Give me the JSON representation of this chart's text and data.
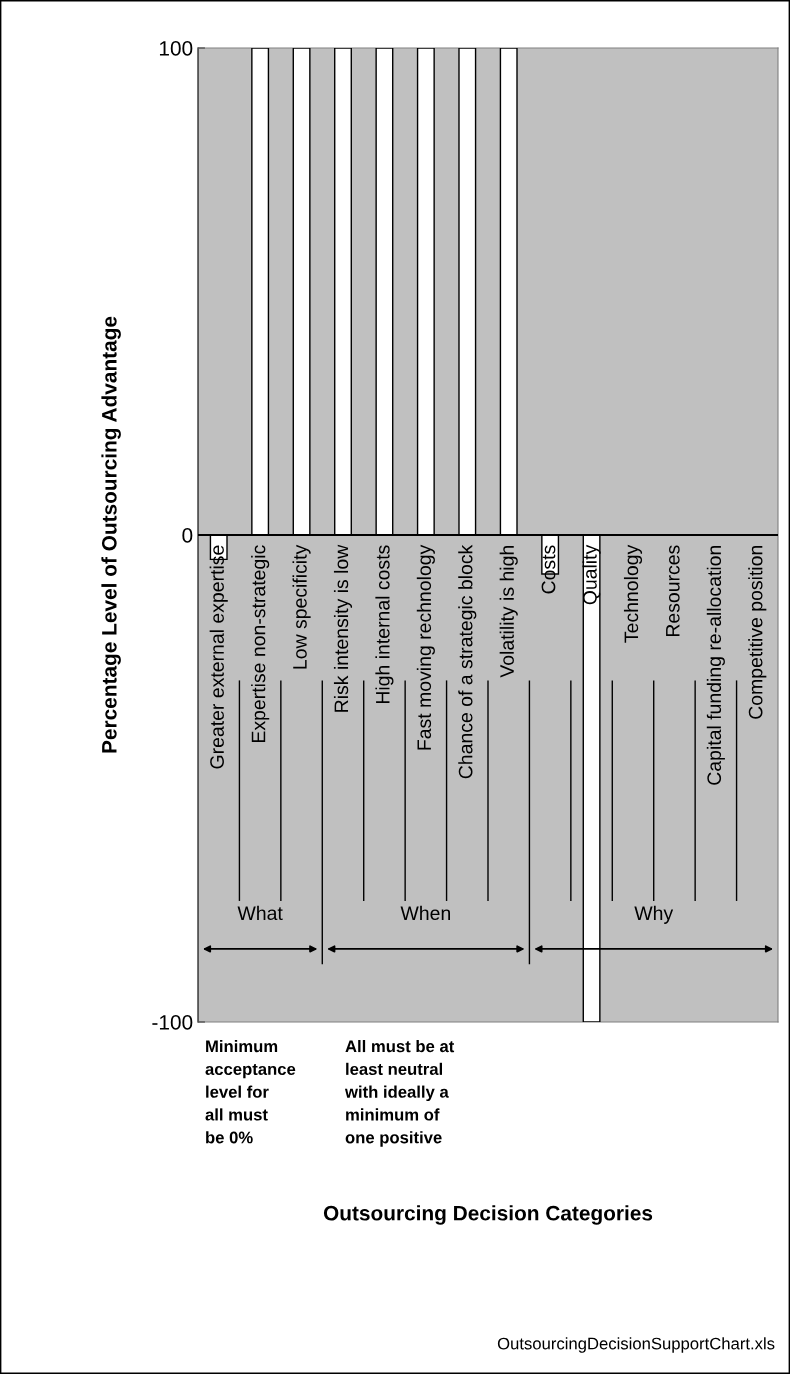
{
  "chart_data": {
    "type": "bar",
    "ylabel": "Percentage Level of Outsourcing Advantage",
    "categories": [
      "Greater external expertise",
      "Expertise non-strategic",
      "Low specificity",
      "Risk intensity is low",
      "High internal costs",
      "Fast moving rechnology",
      "Chance of a strategic block",
      "Volatility is high",
      "Costs",
      "Quality",
      "Technology",
      "Resources",
      "Capital funding re-allocation",
      "Competitive position"
    ],
    "values": [
      -5,
      100,
      100,
      100,
      100,
      100,
      100,
      100,
      -8,
      -100,
      0,
      0,
      0,
      0
    ],
    "color": "#ffffff",
    "ylim": [
      -100,
      100
    ],
    "yticks": [
      -100,
      0,
      100
    ],
    "legend": false,
    "annotations": [
      "What",
      "When",
      "Why",
      "Minimum\nacceptance\nlevel for\nall must\nbe 0%",
      "All must be at\nleast neutral\nwith ideally a\nminimum of\none positive",
      "OutsourcingDecisionSupportChart.xls",
      "Outsourcing Decision Categories"
    ]
  }
}
